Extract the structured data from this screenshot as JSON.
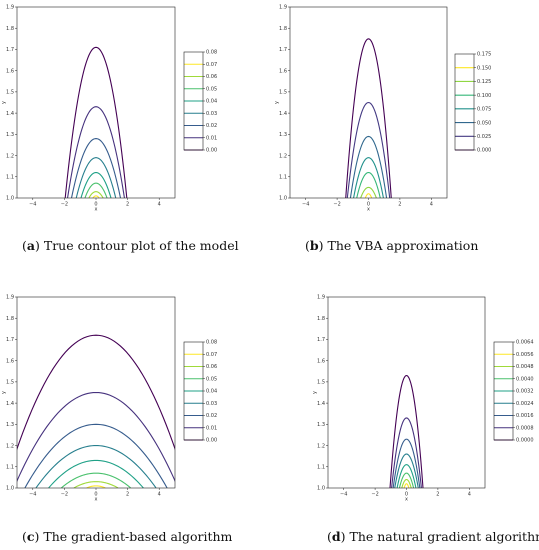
{
  "chart_data": [
    {
      "id": "a",
      "type": "contour",
      "caption_letter": "a",
      "caption_text": "True contour plot of the model",
      "xlabel": "x",
      "ylabel": "y",
      "xlim": [
        -5,
        5
      ],
      "ylim": [
        1.0,
        1.9
      ],
      "xticks": [
        "−4",
        "−2",
        "0",
        "2",
        "4"
      ],
      "yticks": [
        "1.0",
        "1.1",
        "1.2",
        "1.3",
        "1.4",
        "1.5",
        "1.6",
        "1.7",
        "1.8",
        "1.9"
      ],
      "colorbar_ticks": [
        "0.08",
        "0.07",
        "0.06",
        "0.05",
        "0.04",
        "0.03",
        "0.02",
        "0.01",
        "0.00"
      ],
      "contours": [
        {
          "level": 0.0,
          "half_width": 1.95,
          "peak": 1.71,
          "color": "#440154"
        },
        {
          "level": 0.01,
          "half_width": 1.8,
          "peak": 1.43,
          "color": "#46327e"
        },
        {
          "level": 0.02,
          "half_width": 1.55,
          "peak": 1.28,
          "color": "#365c8d"
        },
        {
          "level": 0.03,
          "half_width": 1.25,
          "peak": 1.19,
          "color": "#277f8e"
        },
        {
          "level": 0.04,
          "half_width": 0.95,
          "peak": 1.12,
          "color": "#1fa187"
        },
        {
          "level": 0.05,
          "half_width": 0.7,
          "peak": 1.07,
          "color": "#4ac16d"
        },
        {
          "level": 0.06,
          "half_width": 0.45,
          "peak": 1.03,
          "color": "#a0da39"
        },
        {
          "level": 0.07,
          "half_width": 0.2,
          "peak": 1.01,
          "color": "#fde725"
        }
      ]
    },
    {
      "id": "b",
      "type": "contour",
      "caption_letter": "b",
      "caption_text": "The VBA approximation",
      "xlabel": "x",
      "ylabel": "y",
      "xlim": [
        -5,
        5
      ],
      "ylim": [
        1.0,
        1.9
      ],
      "xticks": [
        "−4",
        "−2",
        "0",
        "2",
        "4"
      ],
      "yticks": [
        "1.0",
        "1.1",
        "1.2",
        "1.3",
        "1.4",
        "1.5",
        "1.6",
        "1.7",
        "1.8",
        "1.9"
      ],
      "colorbar_ticks": [
        "0.175",
        "0.150",
        "0.125",
        "0.100",
        "0.075",
        "0.050",
        "0.025",
        "0.000"
      ],
      "contours": [
        {
          "level": 0.0,
          "half_width": 1.45,
          "peak": 1.75,
          "color": "#440154"
        },
        {
          "level": 0.025,
          "half_width": 1.35,
          "peak": 1.45,
          "color": "#443a83"
        },
        {
          "level": 0.05,
          "half_width": 1.15,
          "peak": 1.29,
          "color": "#31688e"
        },
        {
          "level": 0.075,
          "half_width": 0.95,
          "peak": 1.19,
          "color": "#21918c"
        },
        {
          "level": 0.1,
          "half_width": 0.75,
          "peak": 1.12,
          "color": "#35b779"
        },
        {
          "level": 0.125,
          "half_width": 0.5,
          "peak": 1.05,
          "color": "#90d743"
        },
        {
          "level": 0.15,
          "half_width": 0.2,
          "peak": 1.02,
          "color": "#fde725"
        }
      ]
    },
    {
      "id": "c",
      "type": "contour",
      "caption_letter": "c",
      "caption_text": "The gradient-based algorithm",
      "xlabel": "x",
      "ylabel": "y",
      "xlim": [
        -5,
        5
      ],
      "ylim": [
        1.0,
        1.9
      ],
      "xticks": [
        "−4",
        "−2",
        "0",
        "2",
        "4"
      ],
      "yticks": [
        "1.0",
        "1.1",
        "1.2",
        "1.3",
        "1.4",
        "1.5",
        "1.6",
        "1.7",
        "1.8",
        "1.9"
      ],
      "colorbar_ticks": [
        "0.08",
        "0.07",
        "0.06",
        "0.05",
        "0.04",
        "0.03",
        "0.02",
        "0.01",
        "0.00"
      ],
      "contours": [
        {
          "level": 0.0,
          "half_width": 5.8,
          "peak": 1.72,
          "color": "#440154"
        },
        {
          "level": 0.01,
          "half_width": 5.2,
          "peak": 1.45,
          "color": "#46327e"
        },
        {
          "level": 0.02,
          "half_width": 4.5,
          "peak": 1.3,
          "color": "#365c8d"
        },
        {
          "level": 0.03,
          "half_width": 3.8,
          "peak": 1.2,
          "color": "#277f8e"
        },
        {
          "level": 0.04,
          "half_width": 3.0,
          "peak": 1.13,
          "color": "#1fa187"
        },
        {
          "level": 0.05,
          "half_width": 2.2,
          "peak": 1.07,
          "color": "#4ac16d"
        },
        {
          "level": 0.06,
          "half_width": 1.4,
          "peak": 1.03,
          "color": "#a0da39"
        },
        {
          "level": 0.07,
          "half_width": 0.6,
          "peak": 1.01,
          "color": "#fde725"
        }
      ]
    },
    {
      "id": "d",
      "type": "contour",
      "caption_letter": "d",
      "caption_text": "The natural gradient algorithm",
      "xlabel": "x",
      "ylabel": "y",
      "xlim": [
        -5,
        5
      ],
      "ylim": [
        1.0,
        1.9
      ],
      "xticks": [
        "−4",
        "−2",
        "0",
        "2",
        "4"
      ],
      "yticks": [
        "1.0",
        "1.1",
        "1.2",
        "1.3",
        "1.4",
        "1.5",
        "1.6",
        "1.7",
        "1.8",
        "1.9"
      ],
      "colorbar_ticks": [
        "0.0064",
        "0.0056",
        "0.0048",
        "0.0040",
        "0.0032",
        "0.0024",
        "0.0016",
        "0.0008",
        "0.0000"
      ],
      "contours": [
        {
          "level": 0.0,
          "half_width": 1.05,
          "peak": 1.53,
          "color": "#440154"
        },
        {
          "level": 0.0008,
          "half_width": 0.95,
          "peak": 1.33,
          "color": "#46327e"
        },
        {
          "level": 0.0016,
          "half_width": 0.85,
          "peak": 1.23,
          "color": "#365c8d"
        },
        {
          "level": 0.0024,
          "half_width": 0.75,
          "peak": 1.16,
          "color": "#277f8e"
        },
        {
          "level": 0.0032,
          "half_width": 0.6,
          "peak": 1.11,
          "color": "#1fa187"
        },
        {
          "level": 0.004,
          "half_width": 0.45,
          "peak": 1.07,
          "color": "#4ac16d"
        },
        {
          "level": 0.0048,
          "half_width": 0.3,
          "peak": 1.04,
          "color": "#a0da39"
        },
        {
          "level": 0.0056,
          "half_width": 0.15,
          "peak": 1.02,
          "color": "#fde725"
        }
      ]
    }
  ]
}
